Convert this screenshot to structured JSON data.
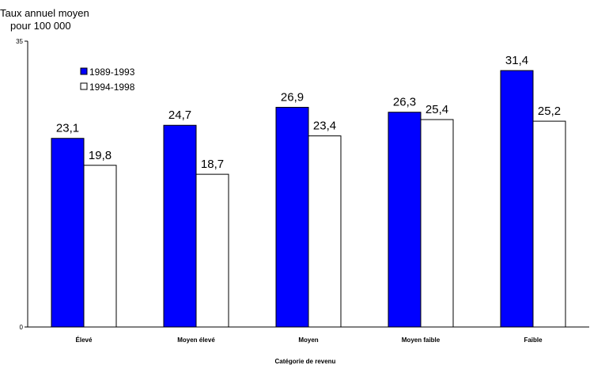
{
  "chart_data": {
    "type": "bar",
    "ylabel_lines": [
      "Taux annuel moyen",
      "pour 100 000"
    ],
    "xlabel": "Catégorie de revenu",
    "categories": [
      "Élevé",
      "Moyen élevé",
      "Moyen",
      "Moyen faible",
      "Faible"
    ],
    "series": [
      {
        "name": "1989-1993",
        "color": "#0000ff",
        "values": [
          23.1,
          24.7,
          26.9,
          26.3,
          31.4
        ],
        "labels": [
          "23,1",
          "24,7",
          "26,9",
          "26,3",
          "31,4"
        ]
      },
      {
        "name": "1994-1998",
        "color": "#ffffff",
        "values": [
          19.8,
          18.7,
          23.4,
          25.4,
          25.2
        ],
        "labels": [
          "19,8",
          "18,7",
          "23,4",
          "25,4",
          "25,2"
        ]
      }
    ],
    "ylim": [
      0,
      35
    ],
    "yticks": [
      "0",
      "35"
    ],
    "grid": false,
    "legend_position": "top-left"
  }
}
